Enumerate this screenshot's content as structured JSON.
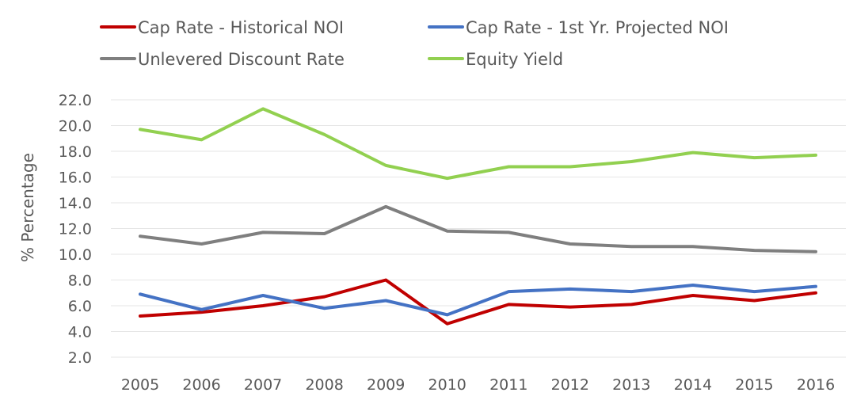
{
  "chart_data": {
    "type": "line",
    "title": "",
    "xlabel": "",
    "ylabel": "% Percentage",
    "ylim": [
      2.0,
      22.0
    ],
    "yticks": [
      "2.0",
      "4.0",
      "6.0",
      "8.0",
      "10.0",
      "12.0",
      "14.0",
      "16.0",
      "18.0",
      "20.0",
      "22.0"
    ],
    "grid": true,
    "legend_position": "top",
    "categories": [
      "2005",
      "2006",
      "2007",
      "2008",
      "2009",
      "2010",
      "2011",
      "2012",
      "2013",
      "2014",
      "2015",
      "2016"
    ],
    "series": [
      {
        "name": "Cap Rate - Historical NOI",
        "color": "#C00000",
        "values": [
          5.2,
          5.5,
          6.0,
          6.7,
          8.0,
          4.6,
          6.1,
          5.9,
          6.1,
          6.8,
          6.4,
          7.0
        ]
      },
      {
        "name": "Cap Rate - 1st Yr. Projected NOI",
        "color": "#4472C4",
        "values": [
          6.9,
          5.7,
          6.8,
          5.8,
          6.4,
          5.3,
          7.1,
          7.3,
          7.1,
          7.6,
          7.1,
          7.5
        ]
      },
      {
        "name": "Unlevered Discount Rate",
        "color": "#7F7F7F",
        "values": [
          11.4,
          10.8,
          11.7,
          11.6,
          13.7,
          11.8,
          11.7,
          10.8,
          10.6,
          10.6,
          10.3,
          10.2
        ]
      },
      {
        "name": "Equity Yield",
        "color": "#92D050",
        "values": [
          19.7,
          18.9,
          21.3,
          19.3,
          16.9,
          15.9,
          16.8,
          16.8,
          17.2,
          17.9,
          17.5,
          17.7
        ]
      }
    ]
  }
}
